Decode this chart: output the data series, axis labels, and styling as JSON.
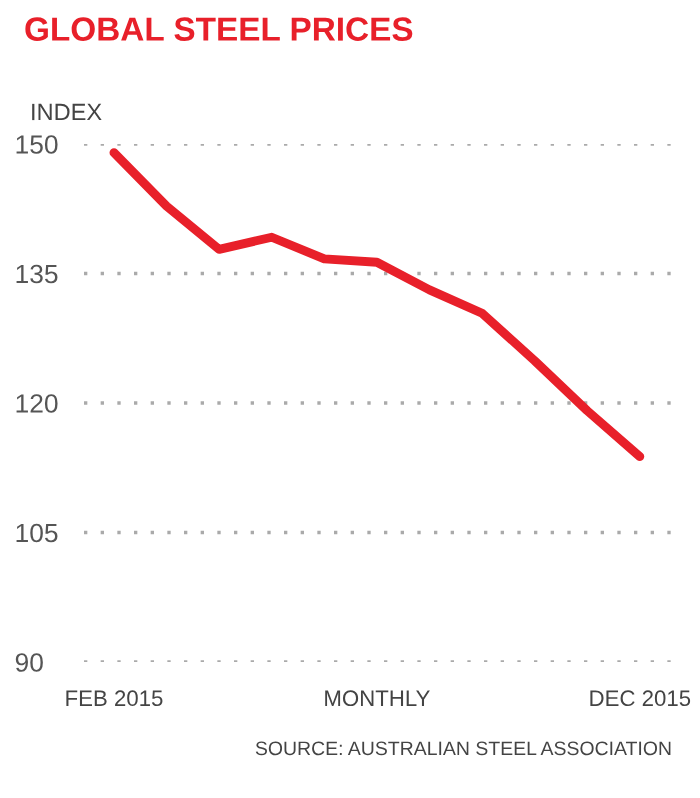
{
  "chart_data": {
    "type": "line",
    "title": "GLOBAL STEEL PRICES",
    "ylabel": "INDEX",
    "categories": [
      "FEB 2015",
      null,
      null,
      null,
      null,
      "MONTHLY",
      null,
      null,
      null,
      null,
      "DEC 2015"
    ],
    "series": [
      {
        "color": "#e8202a",
        "values": [
          149.0,
          142.8,
          137.8,
          139.2,
          136.7,
          136.3,
          133.1,
          130.4,
          124.9,
          119.1,
          113.8
        ]
      }
    ],
    "ylim": [
      90,
      150
    ],
    "yticks": [
      90,
      105,
      120,
      135,
      150
    ],
    "grid": "y",
    "line_style": "solid",
    "marker": "none",
    "annotations": [
      "SOURCE: AUSTRALIAN STEEL ASSOCIATION"
    ]
  }
}
